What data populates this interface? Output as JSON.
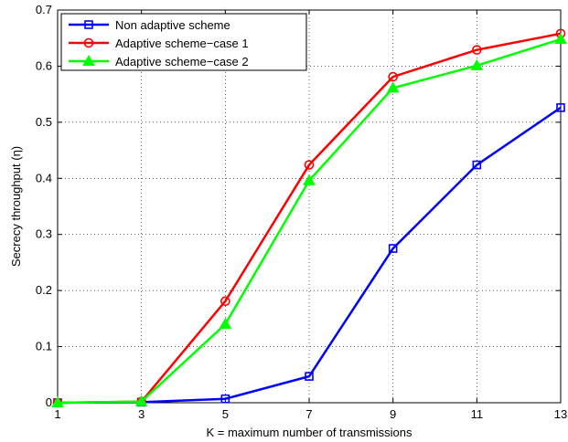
{
  "chart_data": {
    "type": "line",
    "xlabel": "K = maximum number of transmissions",
    "ylabel": "Secrecy throughput (η)",
    "x": [
      1,
      3,
      5,
      7,
      9,
      11,
      13
    ],
    "xticks": [
      1,
      3,
      5,
      7,
      9,
      11,
      13
    ],
    "yticks": [
      0,
      0.1,
      0.2,
      0.3,
      0.4,
      0.5,
      0.6,
      0.7
    ],
    "ytick_labels": [
      "0",
      "0.1",
      "0.2",
      "0.3",
      "0.4",
      "0.5",
      "0.6",
      "0.7"
    ],
    "xlim": [
      1,
      13
    ],
    "ylim": [
      0,
      0.7
    ],
    "grid": true,
    "legend_position": "top-left",
    "series": [
      {
        "name": "Non adaptive scheme",
        "color": "#0000ff",
        "marker": "square",
        "values": [
          0.0,
          0.001,
          0.007,
          0.047,
          0.275,
          0.424,
          0.526
        ]
      },
      {
        "name": "Adaptive scheme−case 1",
        "color": "#ff0000",
        "marker": "circle",
        "values": [
          0.0,
          0.002,
          0.181,
          0.424,
          0.581,
          0.629,
          0.658
        ]
      },
      {
        "name": "Adaptive scheme−case 2",
        "color": "#00ff00",
        "marker": "triangle",
        "values": [
          0.0,
          0.002,
          0.14,
          0.396,
          0.561,
          0.601,
          0.648
        ]
      }
    ]
  }
}
